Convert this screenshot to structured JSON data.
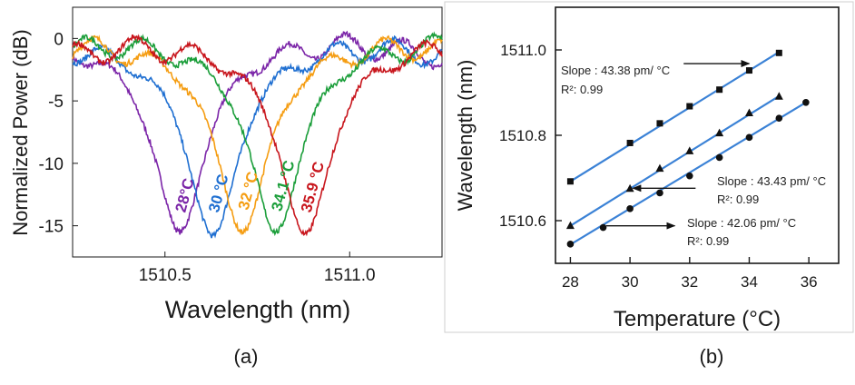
{
  "colors": {
    "c28": "#7b25a8",
    "c30": "#1f6fd1",
    "c32": "#f59d12",
    "c34": "#1b9e3a",
    "c35": "#c8161d",
    "fit": "#3b82d6",
    "axis": "#1a1a1a"
  },
  "chart_data": [
    {
      "panel": "a",
      "type": "line",
      "caption": "(a)",
      "xlabel": "Wavelength (nm)",
      "ylabel": "Normalized Power (dB)",
      "xlim": [
        1510.25,
        1511.25
      ],
      "ylim": [
        -17.5,
        2.5
      ],
      "xticks": [
        1510.5,
        1511.0
      ],
      "xtick_labels": [
        "1510.5",
        "1511.0"
      ],
      "yticks": [
        0,
        -5,
        -10,
        -15
      ],
      "ytick_labels": [
        "0",
        "-5",
        "-10",
        "-15"
      ],
      "series": [
        {
          "name": "28°C",
          "label": "28°C",
          "color_key": "c28",
          "center": 1510.54,
          "width": 0.085,
          "depth": 15.5,
          "offset": 0.0
        },
        {
          "name": "30 °C",
          "label": "30 °C",
          "color_key": "c30",
          "center": 1510.63,
          "width": 0.085,
          "depth": 15.5,
          "offset": -0.3
        },
        {
          "name": "32 °C",
          "label": "32 °C",
          "color_key": "c32",
          "center": 1510.71,
          "width": 0.085,
          "depth": 15.3,
          "offset": -0.2
        },
        {
          "name": "34.1 °C",
          "label": "34.1 °C",
          "color_key": "c34",
          "center": 1510.8,
          "width": 0.085,
          "depth": 15.4,
          "offset": -0.1
        },
        {
          "name": "35.9 °C",
          "label": "35.9 °C",
          "color_key": "c35",
          "center": 1510.88,
          "width": 0.085,
          "depth": 15.5,
          "offset": -0.2
        }
      ]
    },
    {
      "panel": "b",
      "type": "scatter",
      "caption": "(b)",
      "xlabel": "Temperature (°C)",
      "ylabel": "Wavelength (nm)",
      "xlim": [
        27.5,
        37
      ],
      "ylim": [
        1510.5,
        1511.1
      ],
      "xticks": [
        28,
        30,
        32,
        34,
        36
      ],
      "xtick_labels": [
        "28",
        "30",
        "32",
        "34",
        "36"
      ],
      "yticks": [
        1510.6,
        1510.8,
        1511.0
      ],
      "ytick_labels": [
        "1510.6",
        "1510.8",
        "1511.0"
      ],
      "series": [
        {
          "name": "square",
          "marker": "square",
          "x": [
            28,
            30,
            31,
            32,
            33,
            34,
            35
          ],
          "y": [
            1510.692,
            1510.782,
            1510.828,
            1510.868,
            1510.907,
            1510.952,
            1510.993
          ],
          "fit": [
            [
              28,
              1510.692
            ],
            [
              35,
              1510.995
            ]
          ]
        },
        {
          "name": "triangle",
          "marker": "triangle",
          "x": [
            28,
            30,
            31,
            32,
            33,
            34,
            35
          ],
          "y": [
            1510.588,
            1510.675,
            1510.722,
            1510.763,
            1510.805,
            1510.852,
            1510.891
          ],
          "fit": [
            [
              28,
              1510.588
            ],
            [
              35,
              1510.892
            ]
          ]
        },
        {
          "name": "circle",
          "marker": "circle",
          "x": [
            28,
            29.1,
            30,
            31,
            32,
            33,
            34,
            35,
            35.9
          ],
          "y": [
            1510.545,
            1510.584,
            1510.628,
            1510.665,
            1510.705,
            1510.748,
            1510.795,
            1510.84,
            1510.877
          ],
          "fit": [
            [
              28,
              1510.544
            ],
            [
              35.9,
              1510.877
            ]
          ]
        }
      ],
      "annotations": [
        {
          "slope": "Slope : 43.38 pm/ °C",
          "r2": "R²: 0.99",
          "arrow_from": [
            31.8,
            1510.968
          ],
          "arrow_to": [
            34.0,
            1510.968
          ]
        },
        {
          "slope": "Slope : 43.43 pm/ °C",
          "r2": "R²: 0.99",
          "arrow_from": [
            32.2,
            1510.676
          ],
          "arrow_to": [
            30.1,
            1510.676
          ]
        },
        {
          "slope": "Slope : 42.06 pm/ °C",
          "r2": "R²: 0.99",
          "arrow_from": [
            29.2,
            1510.588
          ],
          "arrow_to": [
            31.5,
            1510.588
          ]
        }
      ]
    }
  ]
}
